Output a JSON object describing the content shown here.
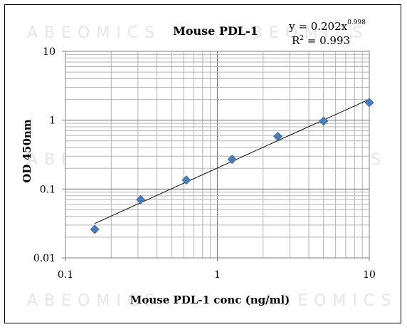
{
  "watermark": "ABEOMICS",
  "chart_data": {
    "type": "scatter",
    "title": "Mouse PDL-1",
    "xlabel": "Mouse PDL-1 conc (ng/ml)",
    "ylabel": "OD 450nm",
    "x_scale": "log",
    "y_scale": "log",
    "xlim": [
      0.1,
      10
    ],
    "ylim": [
      0.01,
      10
    ],
    "x_ticks": [
      "0.1",
      "1",
      "10"
    ],
    "y_ticks": [
      "10",
      "1",
      "0.1",
      "0.01"
    ],
    "grid": true,
    "points": [
      {
        "x": 0.156,
        "y": 0.026
      },
      {
        "x": 0.3125,
        "y": 0.07
      },
      {
        "x": 0.625,
        "y": 0.135
      },
      {
        "x": 1.25,
        "y": 0.27
      },
      {
        "x": 2.5,
        "y": 0.58
      },
      {
        "x": 5,
        "y": 0.97
      },
      {
        "x": 10,
        "y": 1.8
      }
    ],
    "trendline": {
      "type": "power",
      "a": 0.202,
      "b": 0.998,
      "equation_text": "y = 0.202x",
      "exponent_text": "0.998",
      "r2_label": "R",
      "r2_sup": "2",
      "r2_value": " = 0.993",
      "x_range": [
        0.156,
        10
      ]
    },
    "marker_color": "#4a7ebb"
  }
}
